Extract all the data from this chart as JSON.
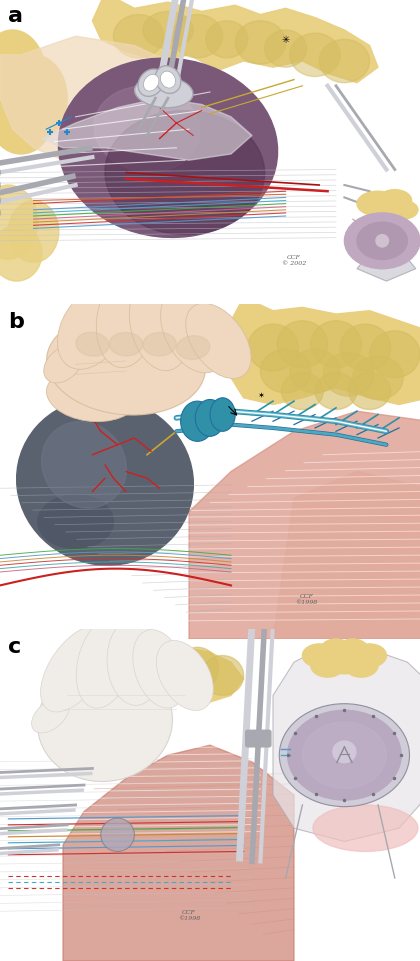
{
  "figsize": [
    4.2,
    9.62
  ],
  "dpi": 100,
  "background": "#ffffff",
  "panel_labels": [
    "a",
    "b",
    "c"
  ],
  "panel_label_fontsize": 16,
  "panel_label_fontweight": "bold",
  "colors": {
    "white": "#ffffff",
    "fat_yellow": "#e8d080",
    "fat_yellow2": "#d4bc60",
    "skin_light": "#f0d8b8",
    "skin_peach": "#e8c8a0",
    "skin_dark": "#d0a878",
    "organ_purple": "#7a5878",
    "organ_purple_dark": "#5a3858",
    "organ_gray": "#606878",
    "organ_gray2": "#505868",
    "muscle_red": "#c87060",
    "muscle_pink": "#e09080",
    "vessel_red": "#cc2020",
    "vessel_red2": "#aa1010",
    "vessel_blue": "#3090a8",
    "vessel_blue2": "#2070a0",
    "nerve_yellow": "#c8a830",
    "tissue_gray": "#c0c0c8",
    "instrument_gray": "#a8a8b0",
    "instrument_light": "#d0d0d8",
    "stripe_red": "#cc3333",
    "stripe_blue": "#5599cc",
    "stripe_cyan": "#44aacc",
    "stripe_green": "#44aa44",
    "stripe_pink": "#cc6688",
    "stripe_orange": "#cc8833"
  }
}
